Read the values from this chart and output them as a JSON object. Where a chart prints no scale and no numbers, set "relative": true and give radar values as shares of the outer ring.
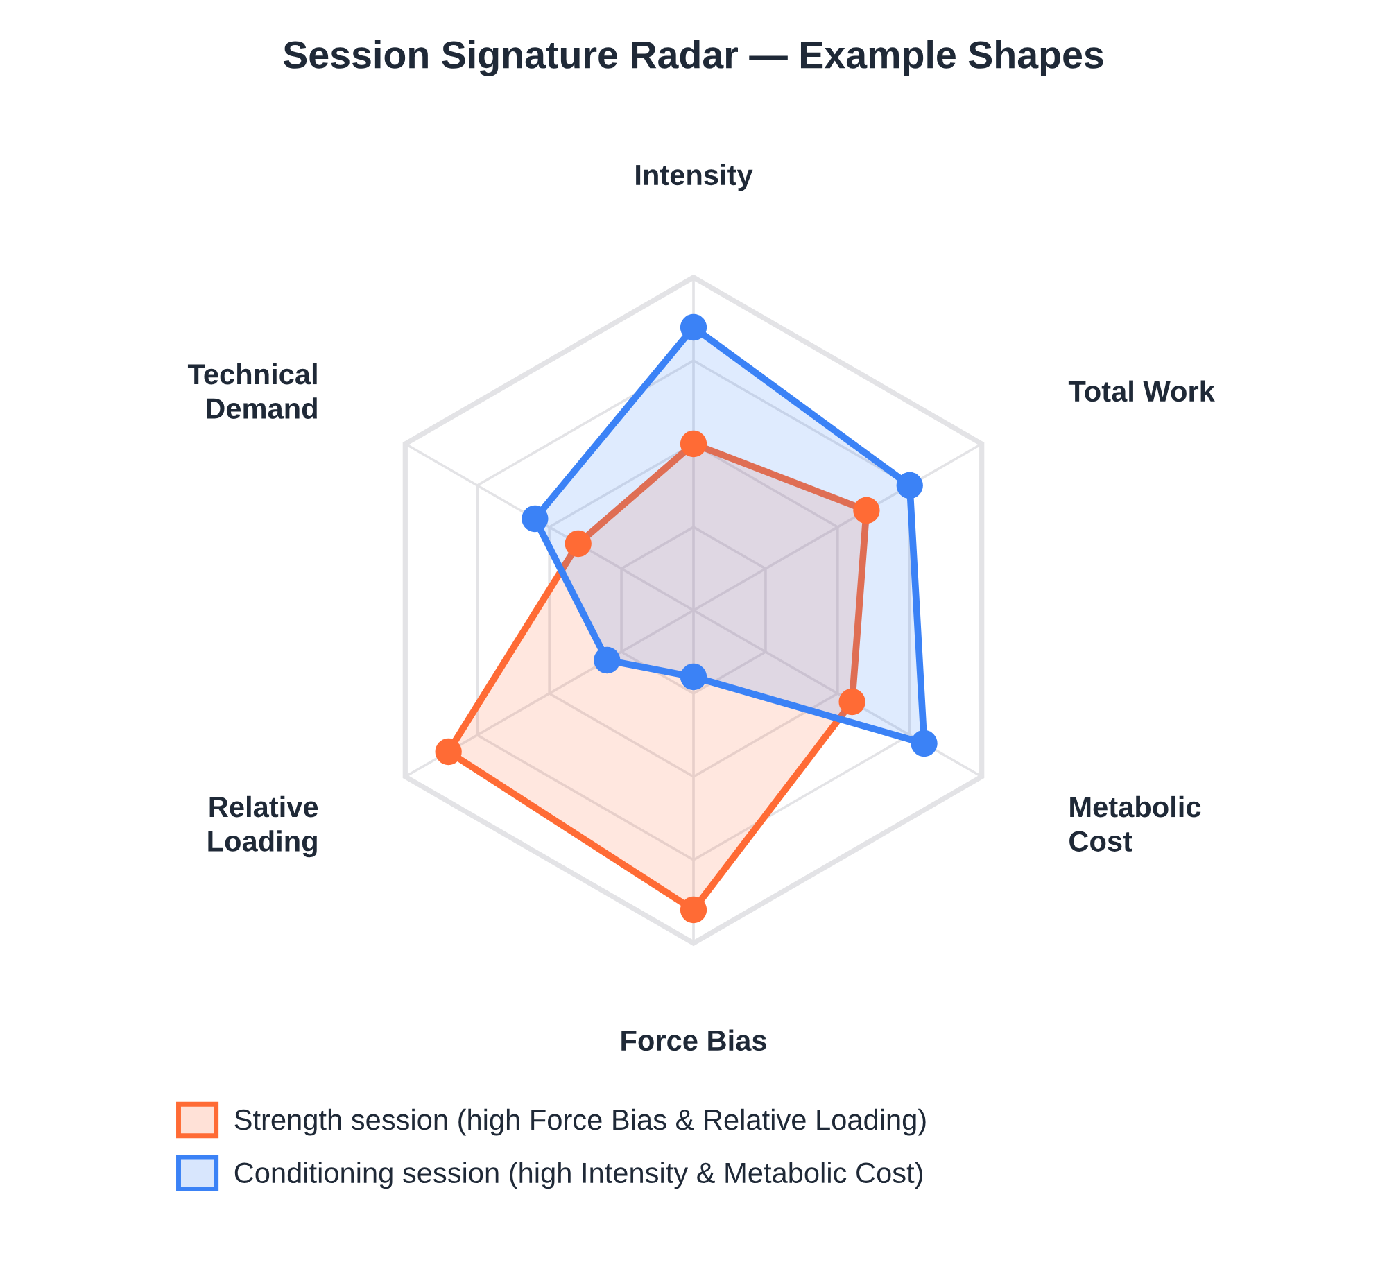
{
  "chart_data": {
    "type": "radar",
    "title": "Session Signature Radar — Example Shapes",
    "categories": [
      "Intensity",
      "Total Work",
      "Metabolic\nCost",
      "Force Bias",
      "Relative\nLoading",
      "Technical\nDemand"
    ],
    "relative": true,
    "grid": true,
    "marker": "circle",
    "legend": "bottom",
    "series": [
      {
        "name": "Strength session (high Force Bias & Relative Loading)",
        "color": "#ff6b35",
        "values": [
          0.5,
          0.6,
          0.55,
          0.9,
          0.85,
          0.4
        ]
      },
      {
        "name": "Conditioning session (high Intensity & Metabolic Cost)",
        "color": "#3b82f6",
        "values": [
          0.85,
          0.75,
          0.8,
          0.2,
          0.3,
          0.55
        ]
      }
    ]
  }
}
